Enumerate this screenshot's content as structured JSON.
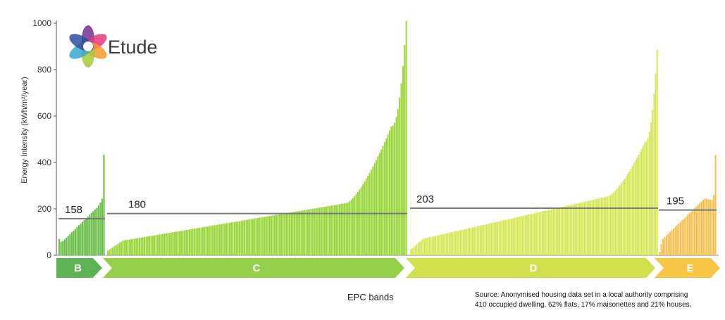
{
  "logo": {
    "text": "Etude"
  },
  "chart_data": {
    "type": "bar",
    "xlabel": "EPC bands",
    "ylabel": "Energy Intensity (kWh/m²/year)",
    "ylim": [
      0,
      1000
    ],
    "yticks": [
      0,
      200,
      400,
      600,
      800,
      1000
    ],
    "grid": false,
    "bands": [
      {
        "name": "B",
        "color": "#5cb351",
        "bar_color": "#6cc04a",
        "average": 158,
        "count": 26,
        "min": 70,
        "max": 433
      },
      {
        "name": "C",
        "color": "#95d04a",
        "bar_color": "#9bd63c",
        "average": 180,
        "count": 180,
        "min": 20,
        "max": 1010
      },
      {
        "name": "D",
        "color": "#cfe04a",
        "bar_color": "#d6e85a",
        "average": 203,
        "count": 160,
        "min": 25,
        "max": 885
      },
      {
        "name": "E",
        "color": "#f9c544",
        "bar_color": "#f7c255",
        "average": 195,
        "count": 33,
        "min": 15,
        "max": 432
      }
    ],
    "source": [
      "Source: Anonymised housing data set in a local authority comprising",
      "410 occupied dwelling, 62% flats, 17% maisonettes and 21% houses,"
    ]
  }
}
